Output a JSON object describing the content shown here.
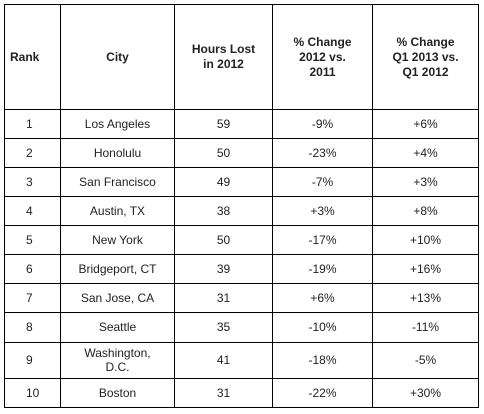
{
  "table": {
    "headers": {
      "rank": "Rank",
      "city": "City",
      "hours": "Hours Lost\nin 2012",
      "change_2012_2011": "% Change\n2012 vs.\n2011",
      "change_q1": "% Change\nQ1 2013 vs.\nQ1 2012"
    },
    "rows": [
      {
        "rank": "1",
        "city": "Los Angeles",
        "hours": "59",
        "change_2012_2011": "-9%",
        "change_q1": "+6%"
      },
      {
        "rank": "2",
        "city": "Honolulu",
        "hours": "50",
        "change_2012_2011": "-23%",
        "change_q1": "+4%"
      },
      {
        "rank": "3",
        "city": "San Francisco",
        "hours": "49",
        "change_2012_2011": "-7%",
        "change_q1": "+3%"
      },
      {
        "rank": "4",
        "city": "Austin, TX",
        "hours": "38",
        "change_2012_2011": "+3%",
        "change_q1": "+8%"
      },
      {
        "rank": "5",
        "city": "New York",
        "hours": "50",
        "change_2012_2011": "-17%",
        "change_q1": "+10%"
      },
      {
        "rank": "6",
        "city": "Bridgeport, CT",
        "hours": "39",
        "change_2012_2011": "-19%",
        "change_q1": "+16%"
      },
      {
        "rank": "7",
        "city": "San Jose, CA",
        "hours": "31",
        "change_2012_2011": "+6%",
        "change_q1": "+13%"
      },
      {
        "rank": "8",
        "city": "Seattle",
        "hours": "35",
        "change_2012_2011": "-10%",
        "change_q1": "-11%"
      },
      {
        "rank": "9",
        "city": "Washington,\nD.C.",
        "hours": "41",
        "change_2012_2011": "-18%",
        "change_q1": "-5%"
      },
      {
        "rank": "10",
        "city": "Boston",
        "hours": "31",
        "change_2012_2011": "-22%",
        "change_q1": "+30%"
      }
    ]
  }
}
